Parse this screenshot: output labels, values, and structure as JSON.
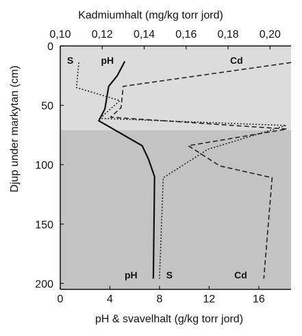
{
  "chart_data": {
    "type": "line",
    "orientation": "depth-profile",
    "title": "",
    "top_axis": {
      "label": "Kadmiumhalt (mg/kg torr jord)",
      "range": [
        0.1,
        0.21
      ],
      "ticks": [
        0.1,
        0.12,
        0.14,
        0.16,
        0.18,
        0.2
      ],
      "tick_labels": [
        "0,10",
        "0,12",
        "0,14",
        "0,16",
        "0,18",
        "0,20"
      ]
    },
    "bottom_axis": {
      "label": "pH & svavelhalt (g/kg torr jord)",
      "range": [
        0,
        18.6
      ],
      "ticks": [
        0,
        4,
        8,
        12,
        16
      ],
      "tick_labels": [
        "0",
        "4",
        "8",
        "12",
        "16"
      ]
    },
    "y_axis": {
      "label": "Djup under markytan (cm)",
      "range": [
        0,
        205
      ],
      "inverted": true,
      "ticks": [
        0,
        50,
        100,
        150,
        200
      ],
      "tick_labels": [
        "0",
        "50",
        "100",
        "150",
        "200"
      ]
    },
    "bands": [
      {
        "from": 0,
        "to": 71,
        "color": "#dcdcdc"
      },
      {
        "from": 71,
        "to": 205,
        "color": "#c3c3c3"
      }
    ],
    "series": [
      {
        "name": "pH",
        "axis": "bottom",
        "style": "solid",
        "color": "#111111",
        "points": [
          [
            5.2,
            13
          ],
          [
            4.6,
            25
          ],
          [
            3.9,
            34
          ],
          [
            3.6,
            53
          ],
          [
            3.1,
            63
          ],
          [
            6.6,
            84
          ],
          [
            7.1,
            95
          ],
          [
            7.6,
            110
          ],
          [
            7.5,
            196
          ]
        ]
      },
      {
        "name": "S",
        "axis": "bottom",
        "style": "dotted",
        "color": "#222222",
        "points": [
          [
            1.5,
            14
          ],
          [
            1.3,
            35
          ],
          [
            4.8,
            46
          ],
          [
            3.2,
            61
          ],
          [
            18.2,
            67
          ],
          [
            11.9,
            87
          ],
          [
            8.3,
            111
          ],
          [
            8.0,
            196
          ]
        ]
      },
      {
        "name": "Cd",
        "axis": "top",
        "style": "dashed",
        "color": "#222222",
        "points": [
          [
            0.21,
            14
          ],
          [
            0.13,
            34
          ],
          [
            0.129,
            52
          ],
          [
            0.124,
            60
          ],
          [
            0.208,
            70
          ],
          [
            0.161,
            84
          ],
          [
            0.176,
            101
          ],
          [
            0.201,
            111
          ],
          [
            0.197,
            196
          ]
        ]
      }
    ],
    "series_labels": [
      {
        "text": "S",
        "axis": "bottom",
        "x": 0.8,
        "y": 12
      },
      {
        "text": "pH",
        "axis": "bottom",
        "x": 3.8,
        "y": 12
      },
      {
        "text": "Cd",
        "axis": "top",
        "x": 0.184,
        "y": 12
      },
      {
        "text": "pH",
        "axis": "bottom",
        "x": 5.7,
        "y": 193
      },
      {
        "text": "S",
        "axis": "bottom",
        "x": 8.8,
        "y": 193
      },
      {
        "text": "Cd",
        "axis": "top",
        "x": 0.186,
        "y": 193
      }
    ]
  }
}
